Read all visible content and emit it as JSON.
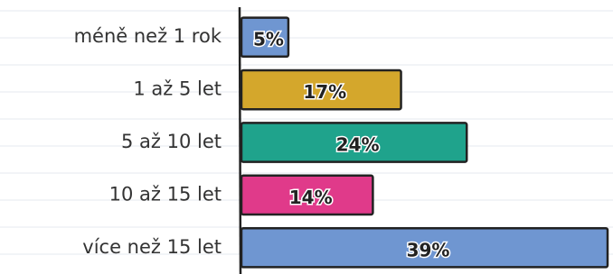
{
  "chart_data": {
    "type": "bar",
    "orientation": "horizontal",
    "categories": [
      "méně než 1 rok",
      "1 až 5 let",
      "5 až 10 let",
      "10 až 15 let",
      "více než 15 let"
    ],
    "values": [
      5,
      17,
      24,
      14,
      39
    ],
    "value_labels": [
      "5%",
      "17%",
      "24%",
      "14%",
      "39%"
    ],
    "colors": [
      "#6f96d1",
      "#d4a72c",
      "#1fa38c",
      "#e03a8a",
      "#6f96d1"
    ]
  }
}
